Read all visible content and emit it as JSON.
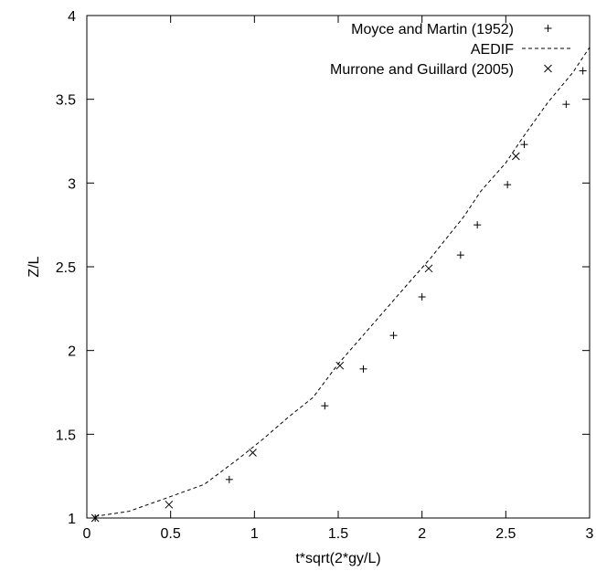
{
  "chart_data": {
    "type": "scatter",
    "title": "",
    "xlabel": "t*sqrt(2*gy/L)",
    "ylabel": "Z/L",
    "xlim": [
      0,
      3
    ],
    "ylim": [
      1,
      4
    ],
    "x_ticks": [
      "0",
      "0.5",
      "1",
      "1.5",
      "2",
      "2.5",
      "3"
    ],
    "y_ticks": [
      "1",
      "1.5",
      "2",
      "2.5",
      "3",
      "3.5",
      "4"
    ],
    "grid": false,
    "legend_position": "top-right",
    "series": [
      {
        "name": "Moyce and Martin (1952)",
        "style": "plus-markers",
        "color": "#000000",
        "points": [
          [
            0.05,
            1.0
          ],
          [
            0.85,
            1.23
          ],
          [
            1.42,
            1.67
          ],
          [
            1.65,
            1.89
          ],
          [
            1.83,
            2.09
          ],
          [
            2.0,
            2.32
          ],
          [
            2.23,
            2.57
          ],
          [
            2.33,
            2.75
          ],
          [
            2.51,
            2.99
          ],
          [
            2.61,
            3.23
          ],
          [
            2.86,
            3.47
          ],
          [
            2.96,
            3.67
          ]
        ]
      },
      {
        "name": "AEDIF",
        "style": "dashed-line",
        "color": "#000000",
        "points": [
          [
            0.05,
            1.01
          ],
          [
            0.25,
            1.04
          ],
          [
            0.45,
            1.11
          ],
          [
            0.7,
            1.2
          ],
          [
            0.9,
            1.35
          ],
          [
            1.05,
            1.47
          ],
          [
            1.2,
            1.6
          ],
          [
            1.35,
            1.72
          ],
          [
            1.5,
            1.92
          ],
          [
            1.7,
            2.15
          ],
          [
            1.9,
            2.38
          ],
          [
            2.05,
            2.55
          ],
          [
            2.25,
            2.8
          ],
          [
            2.35,
            2.95
          ],
          [
            2.5,
            3.12
          ],
          [
            2.6,
            3.27
          ],
          [
            2.75,
            3.48
          ],
          [
            2.9,
            3.66
          ],
          [
            3.0,
            3.81
          ]
        ]
      },
      {
        "name": "Murrone and Guillard (2005)",
        "style": "x-markers",
        "color": "#000000",
        "points": [
          [
            0.05,
            1.0
          ],
          [
            0.49,
            1.08
          ],
          [
            0.99,
            1.39
          ],
          [
            1.51,
            1.91
          ],
          [
            2.04,
            2.49
          ],
          [
            2.56,
            3.16
          ]
        ]
      }
    ]
  }
}
